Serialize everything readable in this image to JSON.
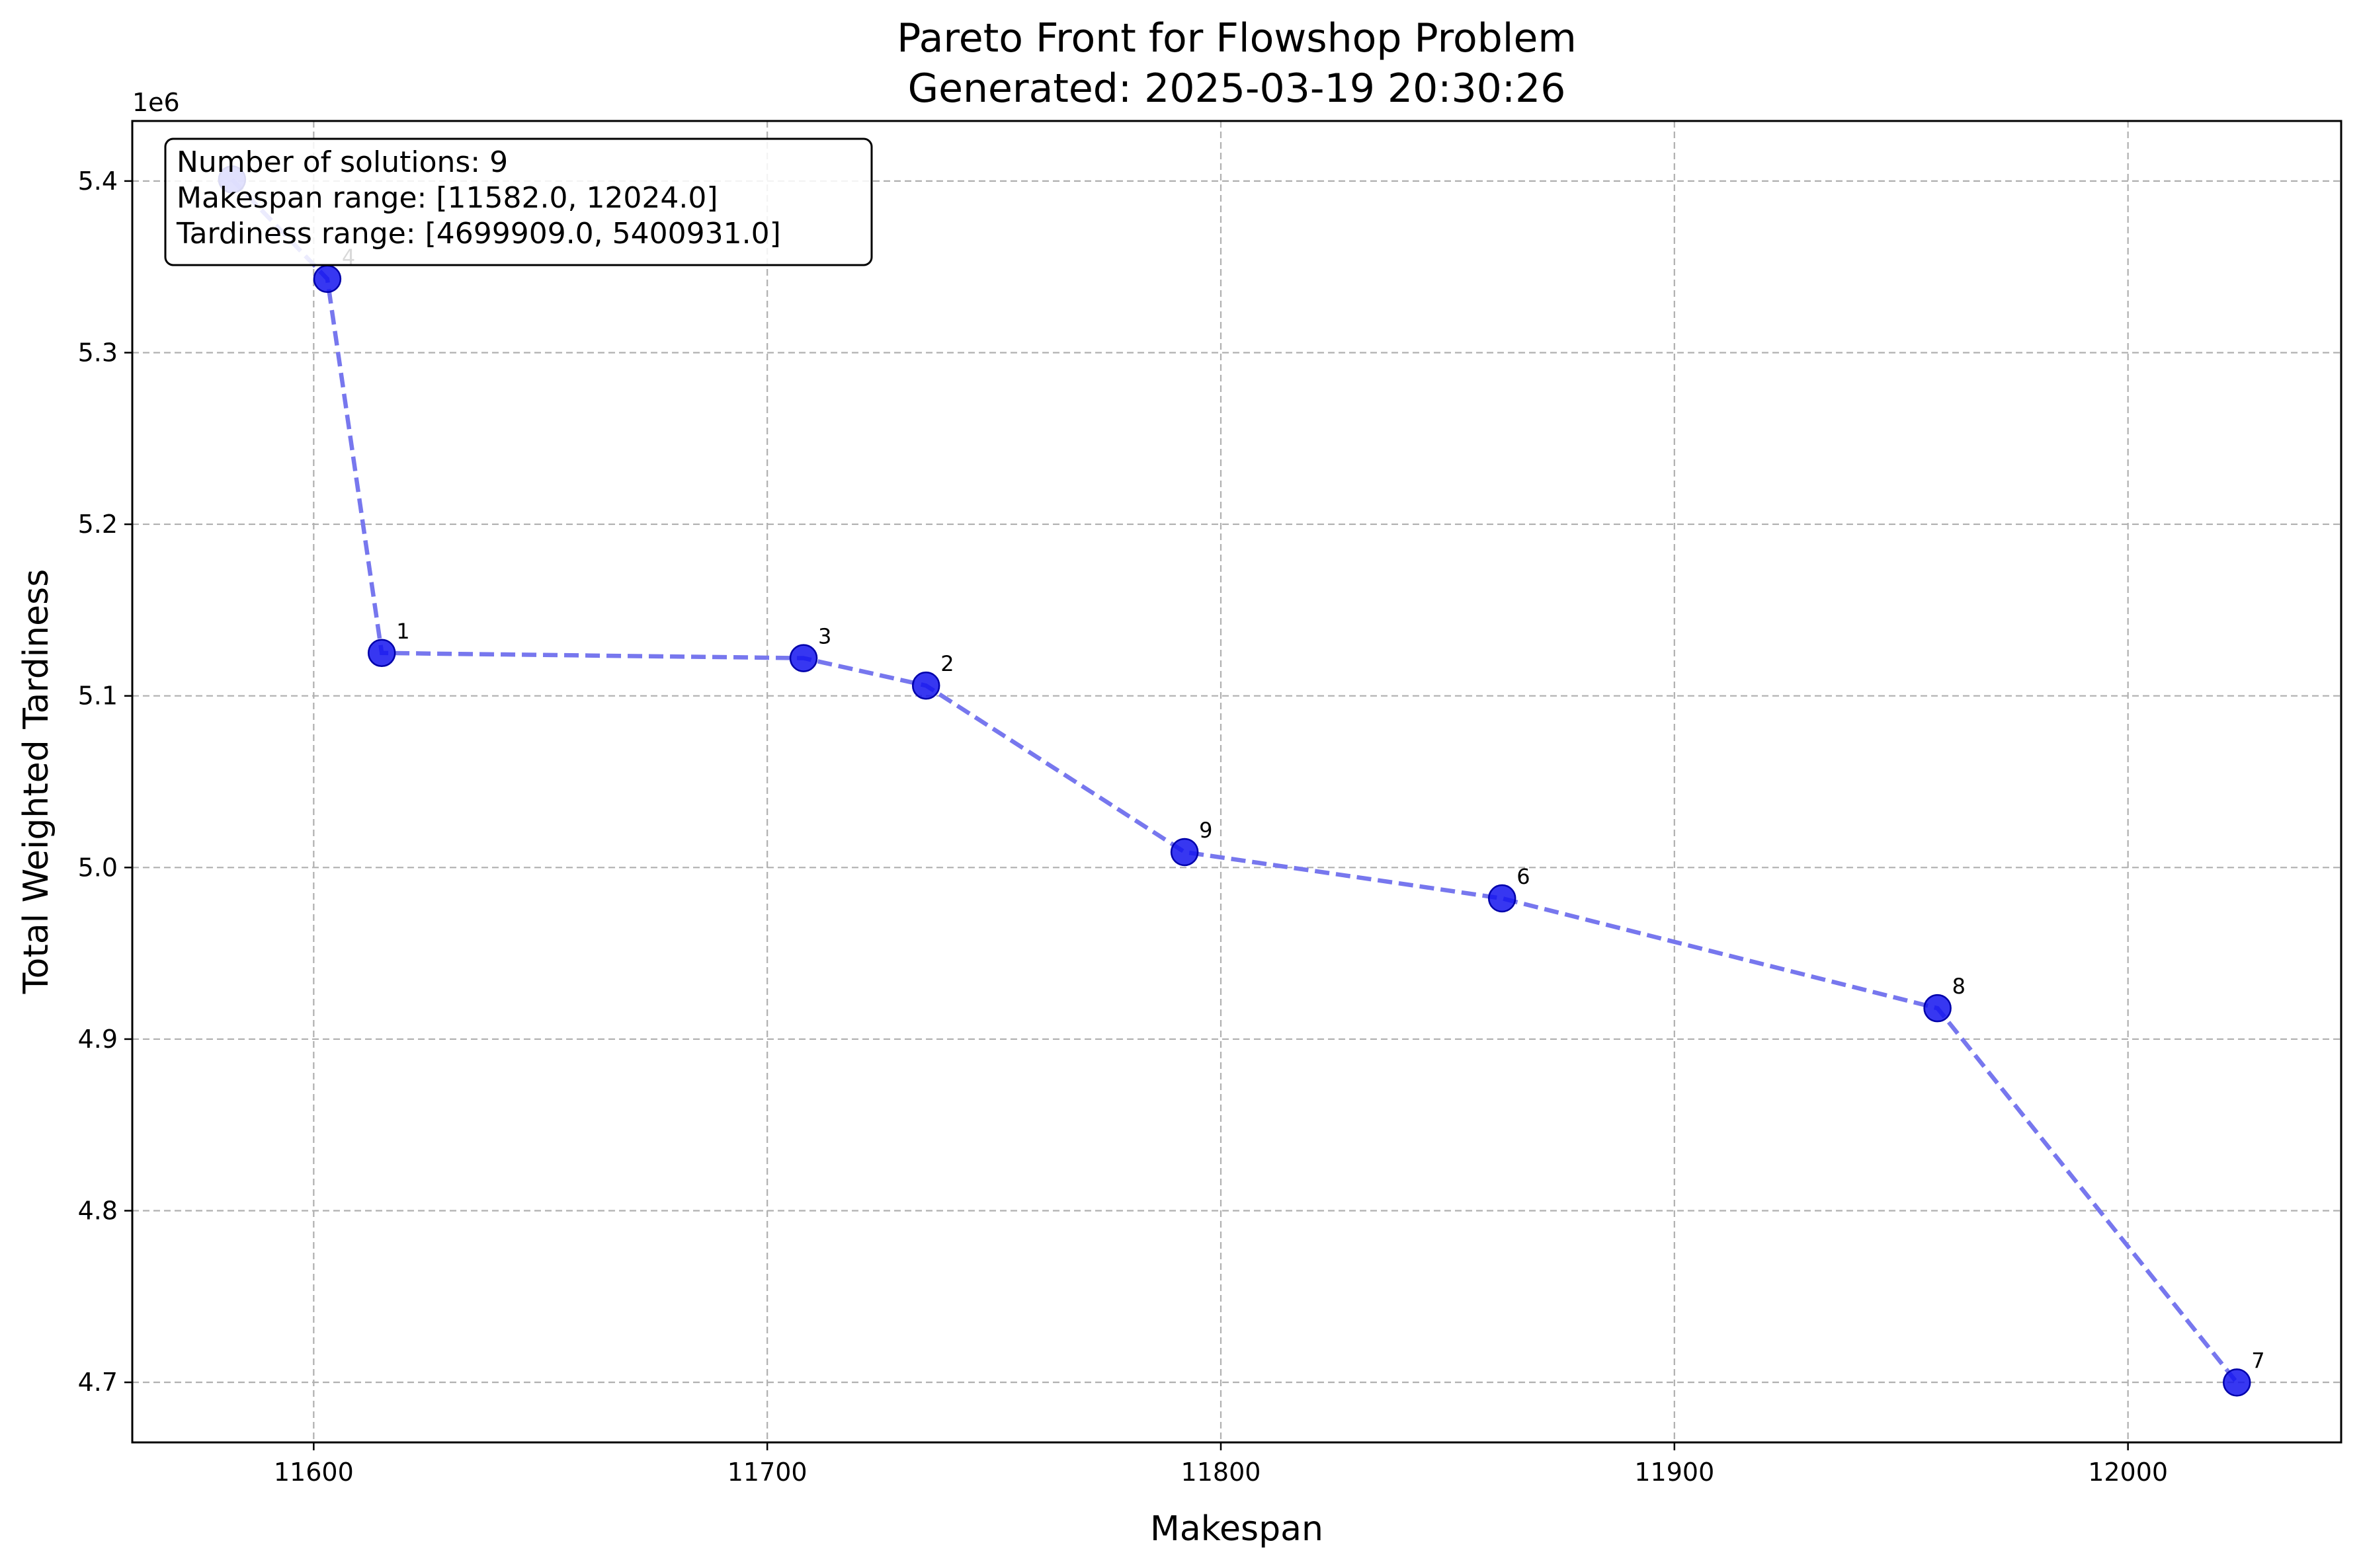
{
  "chart_data": {
    "type": "scatter",
    "title": "Pareto Front for Flowshop Problem",
    "subtitle": "Generated: 2025-03-19 20:30:26",
    "xlabel": "Makespan",
    "ylabel": "Total Weighted Tardiness",
    "y_offset_label": "1e6",
    "xlim": [
      11560,
      12047
    ],
    "ylim": [
      4665000,
      5435000
    ],
    "x_ticks": [
      11600,
      11700,
      11800,
      11900,
      12000
    ],
    "y_ticks": [
      4700000,
      4800000,
      4900000,
      5000000,
      5100000,
      5200000,
      5300000,
      5400000
    ],
    "x_tick_labels": [
      "11600",
      "11700",
      "11800",
      "11900",
      "12000"
    ],
    "y_tick_labels": [
      "4.7",
      "4.8",
      "4.9",
      "5.0",
      "5.1",
      "5.2",
      "5.3",
      "5.4"
    ],
    "grid": true,
    "connect_points": true,
    "line_color": "#7777ee",
    "marker_color": "#1414ee",
    "marker_edge_color": "#0000aa",
    "points": [
      {
        "label": "",
        "x": 11582,
        "y": 5400931
      },
      {
        "label": "4",
        "x": 11603,
        "y": 5343000
      },
      {
        "label": "1",
        "x": 11615,
        "y": 5125000
      },
      {
        "label": "3",
        "x": 11708,
        "y": 5122000
      },
      {
        "label": "2",
        "x": 11735,
        "y": 5106000
      },
      {
        "label": "9",
        "x": 11792,
        "y": 5009000
      },
      {
        "label": "6",
        "x": 11862,
        "y": 4982000
      },
      {
        "label": "8",
        "x": 11958,
        "y": 4918000
      },
      {
        "label": "7",
        "x": 12024,
        "y": 4699909
      }
    ],
    "stats_box": [
      "Number of solutions: 9",
      "Makespan range: [11582.0, 12024.0]",
      "Tardiness range: [4699909.0, 5400931.0]"
    ],
    "stats_box_position": "top-left"
  }
}
